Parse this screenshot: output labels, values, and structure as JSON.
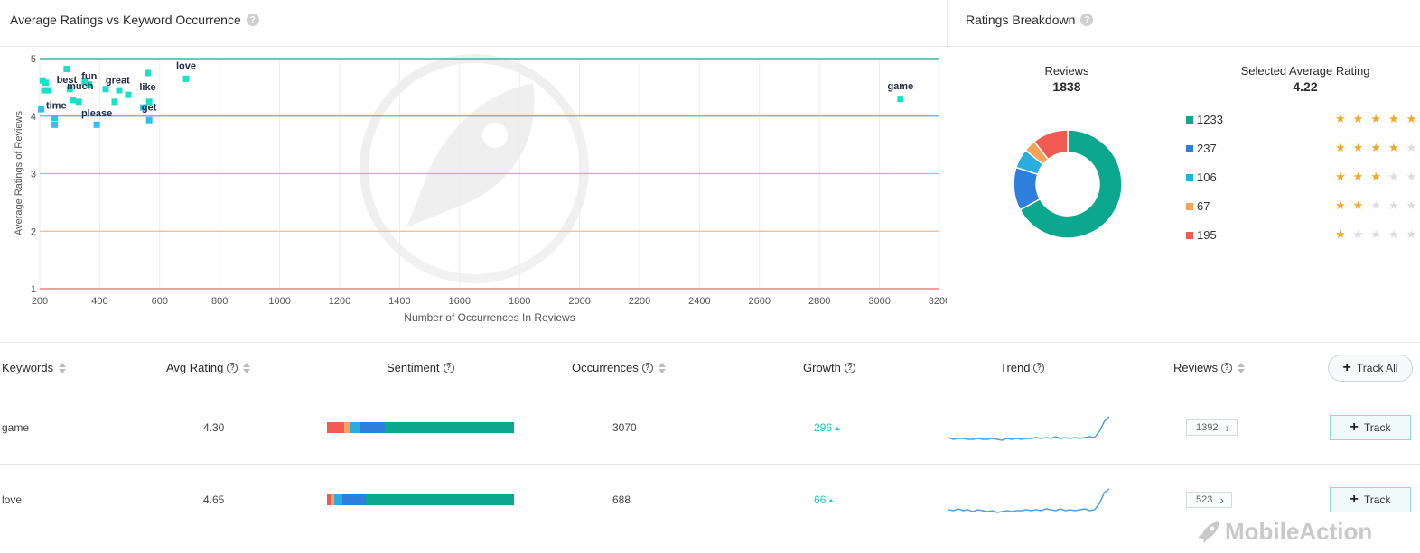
{
  "left_panel": {
    "title": "Average Ratings vs Keyword Occurrence",
    "help": "?"
  },
  "right_panel": {
    "title": "Ratings Breakdown",
    "help": "?"
  },
  "chart_data": {
    "type": "scatter",
    "xlabel": "Number of Occurrences In Reviews",
    "ylabel": "Average Ratings of Reviews",
    "xlim": [
      200,
      3200
    ],
    "ylim": [
      1,
      5
    ],
    "x_ticks": [
      "200",
      "400",
      "600",
      "800",
      "1000",
      "1200",
      "1400",
      "1600",
      "1800",
      "2000",
      "2200",
      "2400",
      "2600",
      "2800",
      "3000",
      "3200"
    ],
    "y_ticks": [
      "1",
      "2",
      "3",
      "4",
      "5"
    ],
    "points": [
      {
        "x": 210,
        "y": 4.62
      },
      {
        "x": 215,
        "y": 4.45
      },
      {
        "x": 220,
        "y": 4.58
      },
      {
        "x": 230,
        "y": 4.45
      },
      {
        "x": 205,
        "y": 4.12
      },
      {
        "x": 250,
        "y": 3.97
      },
      {
        "x": 250,
        "y": 3.85
      },
      {
        "x": 290,
        "y": 4.82
      },
      {
        "x": 300,
        "y": 4.47
      },
      {
        "x": 310,
        "y": 4.28
      },
      {
        "x": 330,
        "y": 4.25
      },
      {
        "x": 350,
        "y": 4.6
      },
      {
        "x": 365,
        "y": 4.55
      },
      {
        "x": 390,
        "y": 3.85
      },
      {
        "x": 420,
        "y": 4.47
      },
      {
        "x": 450,
        "y": 4.25
      },
      {
        "x": 465,
        "y": 4.45
      },
      {
        "x": 495,
        "y": 4.37
      },
      {
        "x": 545,
        "y": 4.15
      },
      {
        "x": 560,
        "y": 4.75
      },
      {
        "x": 565,
        "y": 4.25
      },
      {
        "x": 565,
        "y": 3.93
      },
      {
        "x": 688,
        "y": 4.65
      },
      {
        "x": 3070,
        "y": 4.3
      }
    ],
    "point_labels": [
      {
        "text": "best",
        "x": 290,
        "y": 4.58
      },
      {
        "text": "fun",
        "x": 365,
        "y": 4.64
      },
      {
        "text": "great",
        "x": 460,
        "y": 4.57
      },
      {
        "text": "much",
        "x": 335,
        "y": 4.47
      },
      {
        "text": "like",
        "x": 560,
        "y": 4.45
      },
      {
        "text": "time",
        "x": 255,
        "y": 4.13
      },
      {
        "text": "please",
        "x": 390,
        "y": 4.0
      },
      {
        "text": "get",
        "x": 565,
        "y": 4.1
      },
      {
        "text": "love",
        "x": 688,
        "y": 4.82
      },
      {
        "text": "game",
        "x": 3070,
        "y": 4.47
      }
    ],
    "threshold_lines": [
      {
        "y": 5,
        "color": "#1aa98c"
      },
      {
        "y": 4,
        "color": "#6aa8d8"
      },
      {
        "y": 3,
        "color": "#8fc6e0"
      },
      {
        "y": 2,
        "color": "#f2b990"
      },
      {
        "y": 1,
        "color": "#e86a6a"
      }
    ],
    "point_colors": {
      "high": "#19e0c7",
      "low": "#2ec0ee"
    },
    "grid": true
  },
  "breakdown": {
    "reviews_label": "Reviews",
    "reviews_total": "1838",
    "avg_label": "Selected Average Rating",
    "avg_value": "4.22",
    "donut_data": {
      "type": "pie",
      "values": [
        1233,
        237,
        106,
        67,
        195
      ],
      "colors": [
        "#0ba88f",
        "#2f80dd",
        "#2aaee0",
        "#f5a25d",
        "#f05a50"
      ]
    },
    "legend": [
      {
        "count": "1233",
        "color": "#0ba88f",
        "stars": 5
      },
      {
        "count": "237",
        "color": "#2f80dd",
        "stars": 4
      },
      {
        "count": "106",
        "color": "#2aaee0",
        "stars": 3
      },
      {
        "count": "67",
        "color": "#f5a25d",
        "stars": 2
      },
      {
        "count": "195",
        "color": "#f05a50",
        "stars": 1
      }
    ]
  },
  "table": {
    "headers": {
      "keywords": "Keywords",
      "avg_rating": "Avg Rating",
      "sentiment": "Sentiment",
      "occurrences": "Occurrences",
      "growth": "Growth",
      "trend": "Trend",
      "reviews": "Reviews"
    },
    "track_all": "Track All",
    "help": "?",
    "rows": [
      {
        "keyword": "game",
        "avg_rating": "4.30",
        "occurrences": "3070",
        "growth": "296",
        "reviews": "1392",
        "track": "Track",
        "sentiment": [
          0.09,
          0.03,
          0.06,
          0.13,
          0.69
        ],
        "trend": [
          7,
          5,
          6,
          6,
          5,
          5,
          6,
          5,
          5,
          6,
          5,
          4,
          6,
          5,
          6,
          5,
          6,
          6,
          7,
          6,
          7,
          6,
          8,
          6,
          7,
          6,
          7,
          6,
          7,
          8,
          7,
          14,
          25,
          30
        ]
      },
      {
        "keyword": "love",
        "avg_rating": "4.65",
        "occurrences": "688",
        "growth": "66",
        "reviews": "523",
        "track": "Track",
        "sentiment": [
          0.02,
          0.02,
          0.04,
          0.13,
          0.79
        ],
        "trend": [
          7,
          6,
          8,
          6,
          7,
          5,
          7,
          6,
          5,
          6,
          4,
          5,
          6,
          5,
          6,
          6,
          7,
          6,
          7,
          6,
          8,
          7,
          6,
          8,
          6,
          7,
          6,
          7,
          8,
          6,
          7,
          14,
          26,
          30
        ]
      }
    ],
    "sentiment_colors": [
      "#f05a50",
      "#f5a25d",
      "#2aaee0",
      "#2f80dd",
      "#0ba88f"
    ],
    "trend_color": "#4aa3e0"
  },
  "brand": {
    "name": "MobileAction"
  }
}
